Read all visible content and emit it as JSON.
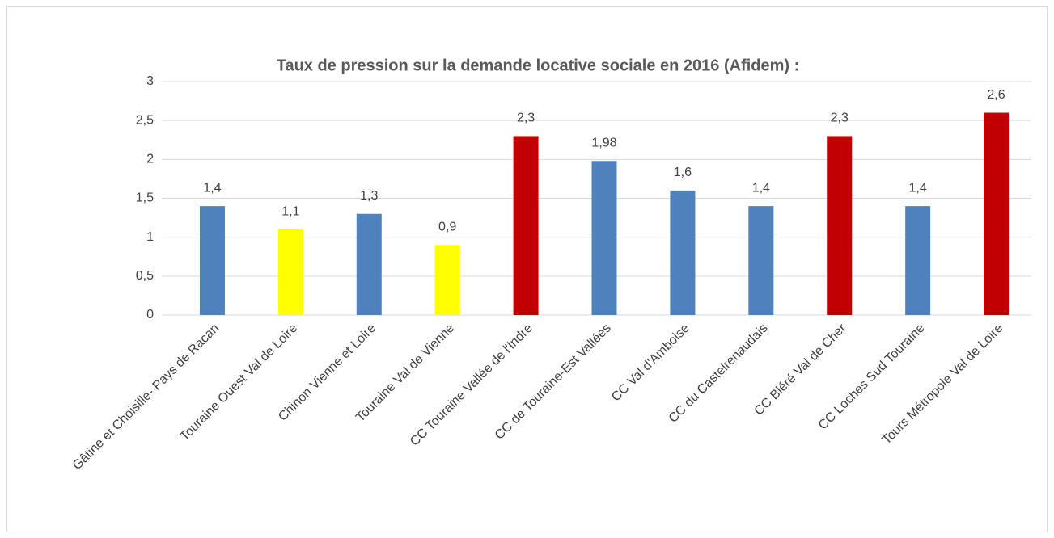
{
  "chart_data": {
    "type": "bar",
    "title": "Taux de pression sur la demande locative sociale en 2016 (Afidem) :",
    "categories": [
      "Gâtine et Choisille- Pays de Racan",
      "Touraine Ouest Val de Loire",
      "Chinon Vienne et Loire",
      "Touraine Val de Vienne",
      "CC Touraine Vallée de l'Indre",
      "CC de Touraine-Est Vallées",
      "CC Val d'Amboise",
      "CC du Castelrenaudais",
      "CC Bléré Val de Cher",
      "CC Loches Sud Touraine",
      "Tours Métropole Val de Loire"
    ],
    "values": [
      1.4,
      1.1,
      1.3,
      0.9,
      2.3,
      1.98,
      1.6,
      1.4,
      2.3,
      1.4,
      2.6
    ],
    "value_labels": [
      "1,4",
      "1,1",
      "1,3",
      "0,9",
      "2,3",
      "1,98",
      "1,6",
      "1,4",
      "2,3",
      "1,4",
      "2,6"
    ],
    "colors": [
      "#4f81bd",
      "#ffff00",
      "#4f81bd",
      "#ffff00",
      "#c00000",
      "#4f81bd",
      "#4f81bd",
      "#4f81bd",
      "#c00000",
      "#4f81bd",
      "#c00000"
    ],
    "ylim": [
      0,
      3
    ],
    "yticks": [
      0,
      {
        "value": 0.5,
        "label": "0,5"
      },
      1,
      {
        "value": 1.5,
        "label": "1,5"
      },
      2,
      {
        "value": 2.5,
        "label": "2,5"
      },
      3
    ],
    "grid": true
  }
}
